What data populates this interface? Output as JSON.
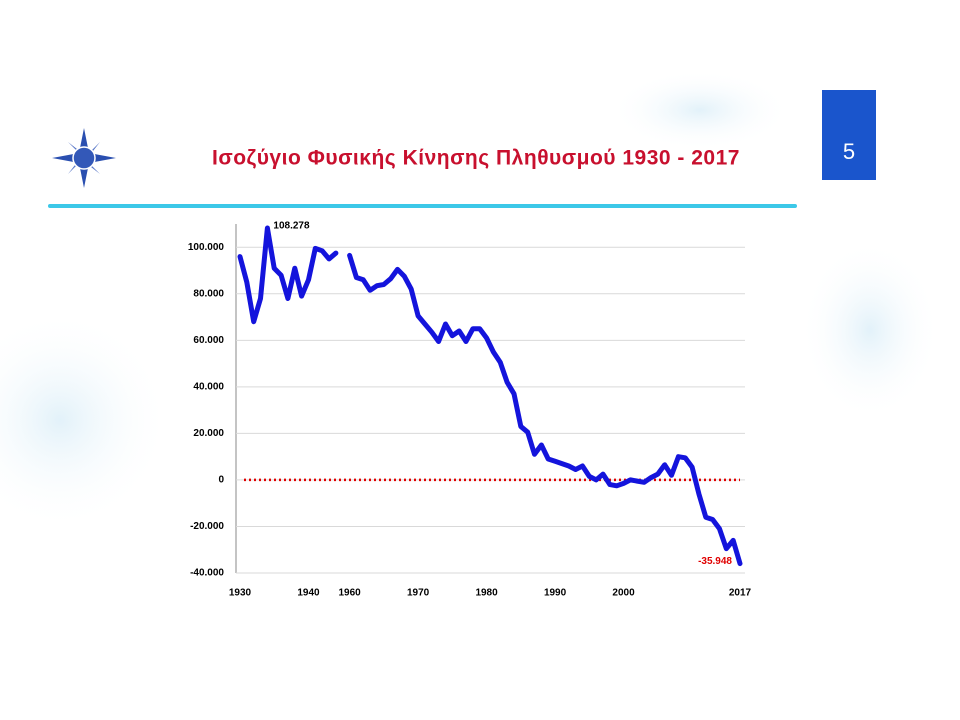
{
  "slide_number": "5",
  "chart_data": {
    "type": "line",
    "title": "Ισοζύγιο Φυσικής Κίνησης Πληθυσμού 1930 - 2017",
    "categories": [
      "1930",
      null,
      null,
      null,
      null,
      null,
      null,
      null,
      null,
      null,
      "1940",
      null,
      null,
      null,
      null,
      null,
      "1960",
      null,
      null,
      null,
      null,
      null,
      null,
      null,
      null,
      null,
      "1970",
      null,
      null,
      null,
      null,
      null,
      null,
      null,
      null,
      null,
      "1980",
      null,
      null,
      null,
      null,
      null,
      null,
      null,
      null,
      null,
      "1990",
      null,
      null,
      null,
      null,
      null,
      null,
      null,
      null,
      null,
      "2000",
      null,
      null,
      null,
      null,
      null,
      null,
      null,
      null,
      null,
      null,
      null,
      null,
      null,
      null,
      null,
      null,
      "2017"
    ],
    "series": [
      {
        "color": "#1414dc",
        "values": [
          96000,
          85000,
          68000,
          78000,
          108278,
          91000,
          88000,
          78000,
          91000,
          79000,
          86000,
          99500,
          98500,
          95000,
          97500,
          null,
          96500,
          87000,
          86000,
          81500,
          83500,
          84000,
          86500,
          90500,
          87500,
          82000,
          70500,
          67000,
          63500,
          59500,
          67000,
          62000,
          64000,
          59500,
          65000,
          65000,
          61000,
          55000,
          50500,
          42000,
          37000,
          23000,
          20500,
          11000,
          15000,
          9000,
          8000,
          7000,
          6000,
          4500,
          6000,
          1500,
          0,
          2500,
          -2000,
          -2500,
          -1500,
          0,
          -500,
          -1000,
          1000,
          2500,
          6500,
          2000,
          10000,
          9500,
          5500,
          -6000,
          -16000,
          -17000,
          -21000,
          -29500,
          -26000,
          -35948
        ],
        "value_labels": [
          "108.278",
          "-35.948"
        ],
        "value_label_indices": [
          4,
          73
        ],
        "value_label_colors": [
          "#000000",
          "#e00000"
        ]
      }
    ],
    "ylim": [
      -40000,
      110000
    ],
    "yticks": [
      {
        "value": -40000,
        "label": "-40.000"
      },
      {
        "value": -20000,
        "label": "-20.000"
      },
      0,
      {
        "value": 20000,
        "label": "20.000"
      },
      {
        "value": 40000,
        "label": "40.000"
      },
      {
        "value": 60000,
        "label": "60.000"
      },
      {
        "value": 80000,
        "label": "80.000"
      },
      {
        "value": 100000,
        "label": "100.000"
      }
    ],
    "grid": true,
    "reference_line": {
      "value": 0,
      "color": "#e00000"
    }
  }
}
